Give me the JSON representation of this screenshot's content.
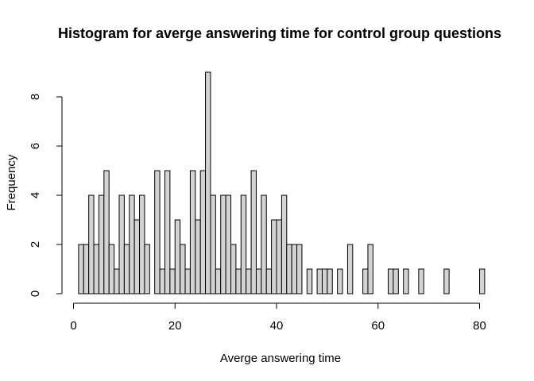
{
  "chart_data": {
    "type": "bar",
    "title": "Histogram for averge answering time for control group questions",
    "xlabel": "Averge answering time",
    "ylabel": "Frequency",
    "xlim": [
      0,
      81
    ],
    "ylim": [
      0,
      9
    ],
    "x_ticks": [
      0,
      20,
      40,
      60,
      80
    ],
    "y_ticks": [
      0,
      2,
      4,
      6,
      8
    ],
    "bin_width": 1,
    "bins_start": 1,
    "bar_color": "#d3d3d3",
    "edge_color": "#000000",
    "values": [
      2,
      2,
      4,
      2,
      4,
      5,
      2,
      1,
      4,
      2,
      4,
      3,
      4,
      2,
      0,
      5,
      1,
      5,
      1,
      3,
      2,
      1,
      5,
      3,
      5,
      9,
      4,
      1,
      4,
      4,
      2,
      1,
      4,
      1,
      5,
      1,
      4,
      1,
      3,
      3,
      4,
      2,
      2,
      2,
      0,
      1,
      0,
      1,
      1,
      1,
      0,
      1,
      0,
      2,
      0,
      0,
      1,
      2,
      0,
      0,
      0,
      1,
      1,
      0,
      1,
      0,
      0,
      1,
      0,
      0,
      0,
      0,
      1,
      0,
      0,
      0,
      0,
      0,
      0,
      1
    ]
  }
}
